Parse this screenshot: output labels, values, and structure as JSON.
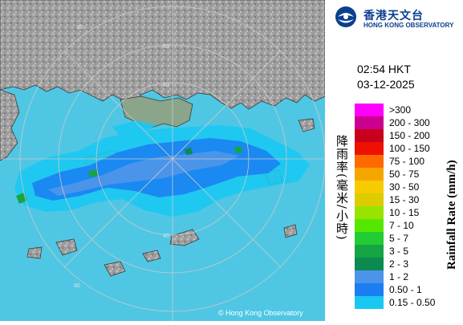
{
  "logo": {
    "name_zh": "香港天文台",
    "name_en": "HONG KONG OBSERVATORY"
  },
  "time": "02:54 HKT",
  "date": "03-12-2025",
  "legend": {
    "title_zh": "降雨率(毫米/小時)",
    "title_en": "Rainfall Rate (mm/h)",
    "items": [
      {
        "label": ">300",
        "color": "#ff00ff"
      },
      {
        "label": "200 - 300",
        "color": "#cc0090"
      },
      {
        "label": "150 - 200",
        "color": "#c8001e"
      },
      {
        "label": "100 - 150",
        "color": "#ee1100"
      },
      {
        "label": "75 - 100",
        "color": "#ff6a00"
      },
      {
        "label": "50 - 75",
        "color": "#f4a500"
      },
      {
        "label": "30 - 50",
        "color": "#f6cc00"
      },
      {
        "label": "15 - 30",
        "color": "#dccc00"
      },
      {
        "label": "10 - 15",
        "color": "#98e400"
      },
      {
        "label": "7 - 10",
        "color": "#54e800"
      },
      {
        "label": "5 - 7",
        "color": "#22cc33"
      },
      {
        "label": "3 - 5",
        "color": "#15a544"
      },
      {
        "label": "2 - 3",
        "color": "#0d8a50"
      },
      {
        "label": "1 - 2",
        "color": "#4a95ea"
      },
      {
        "label": "0.50 - 1",
        "color": "#1b7ef2"
      },
      {
        "label": "0.15 - 0.50",
        "color": "#19c8f2"
      }
    ]
  },
  "map": {
    "range_rings": [
      "40",
      "60",
      "80",
      "40",
      "60"
    ],
    "copyright": "© Hong Kong Observatory",
    "sea_color": "#4fc7e4"
  }
}
